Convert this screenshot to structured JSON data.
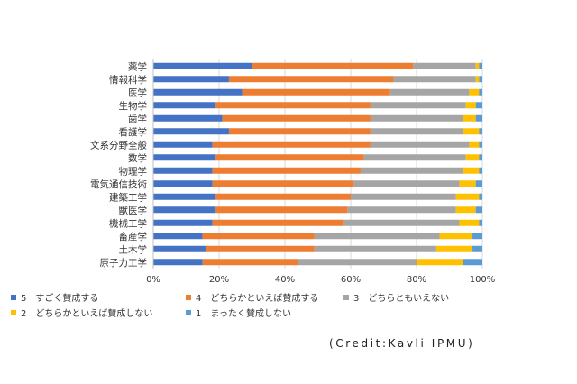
{
  "chart_data": {
    "type": "bar",
    "orientation": "horizontal",
    "stacked": true,
    "percent_stacked": true,
    "categories": [
      "薬学",
      "情報科学",
      "医学",
      "生物学",
      "歯学",
      "看護学",
      "文系分野全般",
      "数学",
      "物理学",
      "電気通信技術",
      "建築工学",
      "獣医学",
      "機械工学",
      "畜産学",
      "土木学",
      "原子力工学"
    ],
    "series": [
      {
        "name": "5　すごく賛成する",
        "color": "#4472c4",
        "values": [
          30,
          23,
          27,
          19,
          21,
          23,
          18,
          19,
          18,
          18,
          19,
          19,
          18,
          15,
          16,
          15
        ]
      },
      {
        "name": "4　どちらかといえば賛成する",
        "color": "#ed7d31",
        "values": [
          49,
          50,
          45,
          47,
          45,
          43,
          48,
          45,
          45,
          43,
          41,
          40,
          40,
          34,
          33,
          29
        ]
      },
      {
        "name": "3　どちらともいえない",
        "color": "#a5a5a5",
        "values": [
          19,
          25,
          24,
          29,
          28,
          28,
          30,
          31,
          31,
          32,
          32,
          33,
          35,
          38,
          37,
          36
        ]
      },
      {
        "name": "2　どちらかといえば賛成しない",
        "color": "#ffc000",
        "values": [
          1,
          1,
          3,
          3,
          4,
          5,
          3,
          4,
          5,
          5,
          7,
          6,
          6,
          10,
          11,
          14
        ]
      },
      {
        "name": "1　まったく賛成しない",
        "color": "#5b9bd5",
        "values": [
          1,
          1,
          1,
          2,
          2,
          1,
          1,
          1,
          1,
          2,
          1,
          2,
          1,
          3,
          3,
          6
        ]
      }
    ],
    "xlim": [
      0,
      100
    ],
    "x_ticks": [
      "0%",
      "20%",
      "40%",
      "60%",
      "80%",
      "100%"
    ],
    "legend_position": "bottom",
    "grid": "vertical"
  },
  "credit": "(Credit:Kavli IPMU)"
}
